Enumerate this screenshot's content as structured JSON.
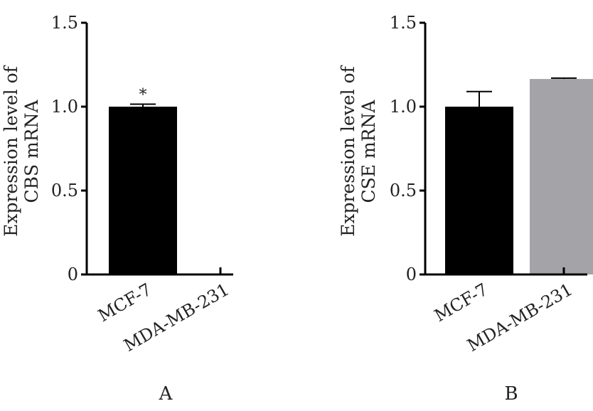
{
  "colors": {
    "axis": "#000000",
    "bar_dark": "#000000",
    "bar_gray": "#a4a4a8",
    "text": "#222222"
  },
  "chart_data": [
    {
      "type": "bar",
      "panel_label": "A",
      "ylabel_lines": [
        "Expression level of",
        "CBS mRNA"
      ],
      "categories": [
        "MCF-7",
        "MDA-MB-231"
      ],
      "values": [
        1.0,
        0.0
      ],
      "errors": [
        0.015,
        0.0
      ],
      "bar_colors": [
        "#000000",
        "#000000"
      ],
      "annotations": [
        "*",
        ""
      ],
      "ylim": [
        0,
        1.5
      ],
      "yticks": [
        0,
        0.5,
        1.0,
        1.5
      ],
      "ytick_labels": [
        "0",
        "0.5",
        "1.0",
        "1.5"
      ]
    },
    {
      "type": "bar",
      "panel_label": "B",
      "ylabel_lines": [
        "Expression level of",
        "CSE mRNA"
      ],
      "categories": [
        "MCF-7",
        "MDA-MB-231"
      ],
      "values": [
        1.0,
        1.165
      ],
      "errors": [
        0.09,
        0.005
      ],
      "bar_colors": [
        "#000000",
        "#a4a4a8"
      ],
      "annotations": [
        "",
        ""
      ],
      "ylim": [
        0,
        1.5
      ],
      "yticks": [
        0,
        0.5,
        1.0,
        1.5
      ],
      "ytick_labels": [
        "0",
        "0.5",
        "1.0",
        "1.5"
      ]
    }
  ]
}
